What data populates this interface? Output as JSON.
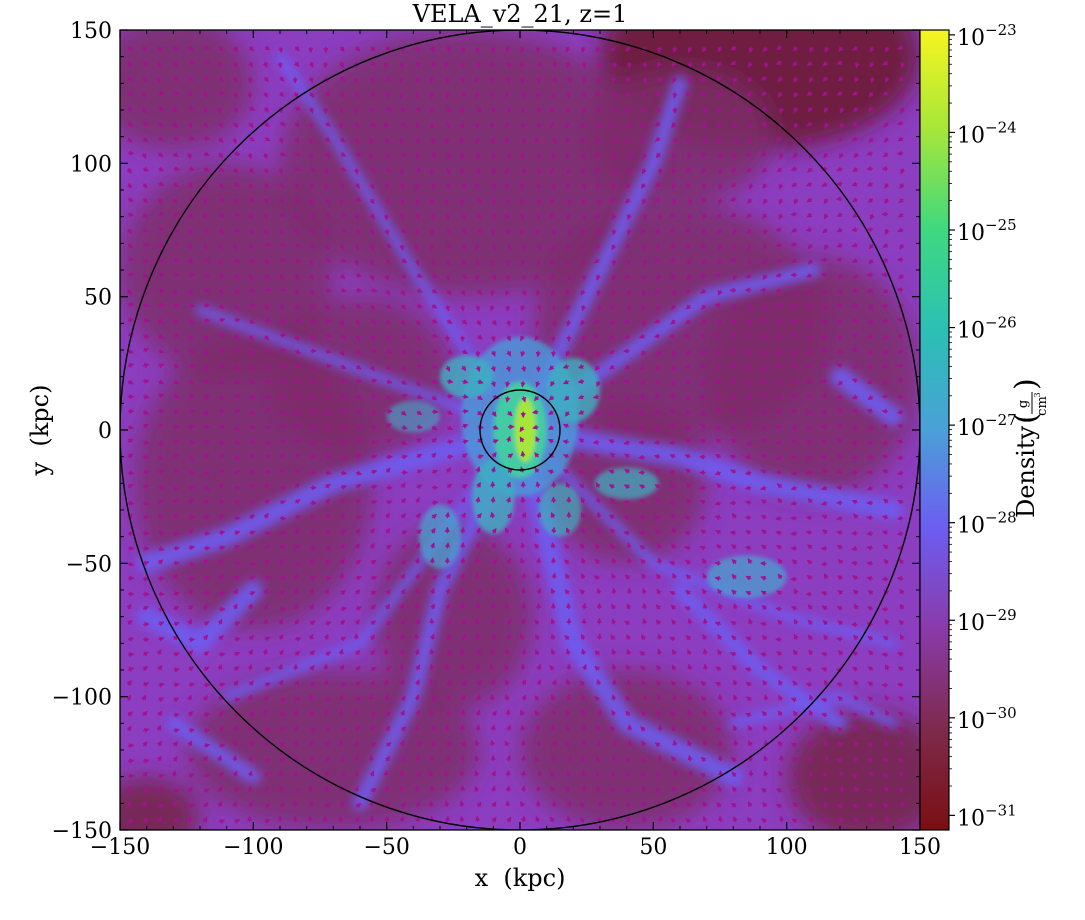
{
  "chart_data": {
    "type": "heatmap",
    "title": "VELA_v2_21, z=1",
    "xlabel": "x  (kpc)",
    "ylabel": "y  (kpc)",
    "xlim": [
      -150,
      150
    ],
    "ylim": [
      -150,
      150
    ],
    "xticks": [
      -150,
      -100,
      -50,
      0,
      50,
      100,
      150
    ],
    "yticks": [
      -150,
      -100,
      -50,
      0,
      50,
      100,
      150
    ],
    "colorbar": {
      "label": "Density",
      "unit_numerator": "g",
      "unit_denominator": "cm",
      "unit_denominator_exponent": "3",
      "scale": "log",
      "range": [
        1e-31,
        1e-23
      ],
      "tick_base": "10",
      "tick_exponents": [
        "−31",
        "−30",
        "−29",
        "−28",
        "−27",
        "−26",
        "−25",
        "−24",
        "−23"
      ],
      "colors": [
        "#7a0f12",
        "#7e2a4c",
        "#8a3aa8",
        "#6d5cf0",
        "#4aa0d8",
        "#2bc0b4",
        "#3fd880",
        "#a6e63a",
        "#f6f520"
      ]
    },
    "circles": [
      {
        "name": "outer-circle",
        "center": [
          0,
          0
        ],
        "radius": 150
      },
      {
        "name": "inner-circle",
        "center": [
          0,
          0
        ],
        "radius": 15
      }
    ],
    "background_colors": {
      "field": "#8b3ec0",
      "filament": "#6e5cf0",
      "void": "#7c2d68",
      "dense_core": "#43d0a0",
      "arrow": "#a0128e"
    }
  }
}
